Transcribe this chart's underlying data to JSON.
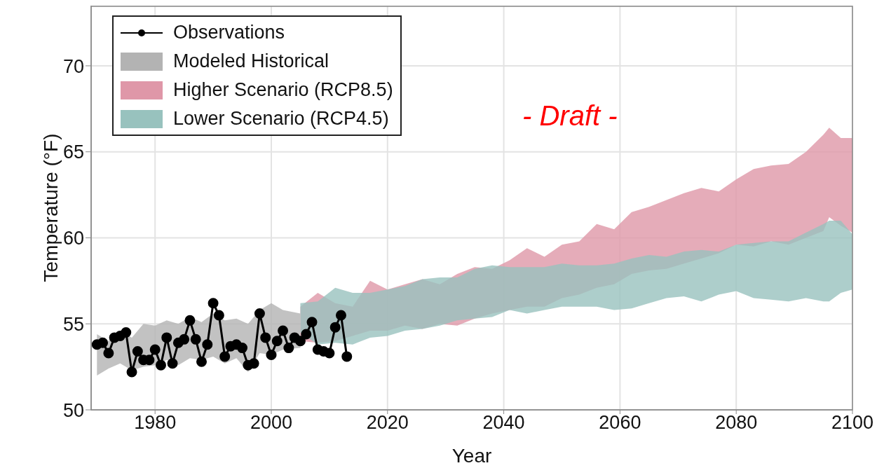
{
  "chart_data": {
    "type": "area",
    "xlabel": "Year",
    "ylabel": "Temperature (°F)",
    "xlim": [
      1969,
      2100
    ],
    "ylim": [
      50,
      73.5
    ],
    "xticks": [
      1980,
      2000,
      2020,
      2040,
      2060,
      2080,
      2100
    ],
    "yticks": [
      50,
      55,
      60,
      65,
      70
    ],
    "grid": true,
    "legend": "top left",
    "annotations": [
      "- Draft -"
    ],
    "series": [
      {
        "name": "Observations",
        "type": "line",
        "marker": "circle",
        "color": "#000000",
        "x": [
          1970,
          1971,
          1972,
          1973,
          1974,
          1975,
          1976,
          1977,
          1978,
          1979,
          1980,
          1981,
          1982,
          1983,
          1984,
          1985,
          1986,
          1987,
          1988,
          1989,
          1990,
          1991,
          1992,
          1993,
          1994,
          1995,
          1996,
          1997,
          1998,
          1999,
          2000,
          2001,
          2002,
          2003,
          2004,
          2005,
          2006,
          2007,
          2008,
          2009,
          2010,
          2011,
          2012,
          2013
        ],
        "values": [
          53.8,
          53.9,
          53.3,
          54.2,
          54.3,
          54.5,
          52.2,
          53.4,
          52.9,
          52.9,
          53.5,
          52.6,
          54.2,
          52.7,
          53.9,
          54.1,
          55.2,
          54.1,
          52.8,
          53.8,
          56.2,
          55.5,
          53.1,
          53.7,
          53.8,
          53.6,
          52.6,
          52.7,
          55.6,
          54.2,
          53.2,
          54.0,
          54.6,
          53.6,
          54.2,
          54.0,
          54.4,
          55.1,
          53.5,
          53.4,
          53.3,
          54.8,
          55.5,
          53.1
        ]
      },
      {
        "name": "Modeled Historical",
        "color": "#b3b3b3",
        "x": [
          1970,
          1972,
          1974,
          1976,
          1978,
          1980,
          1982,
          1984,
          1986,
          1988,
          1990,
          1992,
          1994,
          1996,
          1998,
          2000,
          2002,
          2005
        ],
        "values": [
          null,
          null,
          null,
          null,
          null,
          null,
          null,
          null,
          null,
          null,
          null,
          null,
          null,
          null,
          null,
          null,
          null,
          null
        ],
        "upper": [
          54.4,
          54.0,
          54.6,
          54.2,
          55.0,
          54.9,
          55.2,
          55.0,
          55.4,
          55.1,
          55.6,
          55.2,
          55.3,
          55.0,
          55.8,
          56.2,
          55.8,
          55.6
        ],
        "lower": [
          52.0,
          52.4,
          52.7,
          52.3,
          52.5,
          52.6,
          52.9,
          52.6,
          53.0,
          52.9,
          53.1,
          52.7,
          53.0,
          52.2,
          53.3,
          53.2,
          53.5,
          53.6
        ]
      },
      {
        "name": "Higher Scenario (RCP8.5)",
        "color": "#df97a8",
        "x": [
          2005,
          2008,
          2011,
          2014,
          2017,
          2020,
          2023,
          2026,
          2029,
          2032,
          2035,
          2038,
          2041,
          2044,
          2047,
          2050,
          2053,
          2056,
          2059,
          2062,
          2065,
          2068,
          2071,
          2074,
          2077,
          2080,
          2083,
          2086,
          2089,
          2092,
          2095,
          2096,
          2098,
          2100
        ],
        "values": [
          null,
          null,
          null,
          null,
          null,
          null,
          null,
          null,
          null,
          null,
          null,
          null,
          null,
          null,
          null,
          null,
          null,
          null,
          null,
          null,
          null,
          null,
          null,
          null,
          null,
          null,
          null,
          null,
          null,
          null,
          null,
          null,
          null,
          null
        ],
        "upper": [
          56.0,
          56.8,
          56.2,
          56.0,
          57.5,
          57.0,
          57.3,
          57.6,
          57.3,
          57.9,
          58.3,
          58.2,
          58.7,
          59.4,
          58.9,
          59.6,
          59.8,
          60.8,
          60.5,
          61.5,
          61.8,
          62.2,
          62.6,
          62.9,
          62.7,
          63.4,
          64.0,
          64.2,
          64.3,
          65.0,
          66.0,
          66.4,
          65.8,
          65.8
        ],
        "lower": [
          54.0,
          53.9,
          54.0,
          54.3,
          54.6,
          54.6,
          54.9,
          54.7,
          55.0,
          54.9,
          55.3,
          55.6,
          55.8,
          56.0,
          56.0,
          56.5,
          56.7,
          57.1,
          57.3,
          57.9,
          58.1,
          58.2,
          58.5,
          58.8,
          59.1,
          59.6,
          59.5,
          59.8,
          59.6,
          60.0,
          60.4,
          61.2,
          60.7,
          60.3
        ]
      },
      {
        "name": "Lower Scenario (RCP4.5)",
        "color": "#98c2be",
        "x": [
          2005,
          2008,
          2011,
          2014,
          2017,
          2020,
          2023,
          2026,
          2029,
          2032,
          2035,
          2038,
          2041,
          2044,
          2047,
          2050,
          2053,
          2056,
          2059,
          2062,
          2065,
          2068,
          2071,
          2074,
          2077,
          2080,
          2083,
          2086,
          2089,
          2092,
          2095,
          2096,
          2098,
          2100
        ],
        "values": [
          null,
          null,
          null,
          null,
          null,
          null,
          null,
          null,
          null,
          null,
          null,
          null,
          null,
          null,
          null,
          null,
          null,
          null,
          null,
          null,
          null,
          null,
          null,
          null,
          null,
          null,
          null,
          null,
          null,
          null,
          null,
          null,
          null,
          null
        ],
        "upper": [
          56.2,
          56.3,
          57.1,
          56.8,
          56.8,
          57.0,
          57.2,
          57.6,
          57.7,
          57.7,
          58.2,
          58.4,
          58.3,
          58.3,
          58.3,
          58.5,
          58.4,
          58.4,
          58.5,
          58.8,
          59.0,
          58.9,
          59.2,
          59.3,
          59.2,
          59.6,
          59.7,
          59.8,
          59.8,
          60.3,
          60.8,
          61.0,
          61.0,
          60.2
        ],
        "lower": [
          54.5,
          53.8,
          53.9,
          53.8,
          54.2,
          54.3,
          54.6,
          54.7,
          54.9,
          55.2,
          55.3,
          55.4,
          55.8,
          55.6,
          55.8,
          56.0,
          56.0,
          56.0,
          55.8,
          55.9,
          56.2,
          56.5,
          56.6,
          56.3,
          56.7,
          56.9,
          56.5,
          56.4,
          56.3,
          56.5,
          56.3,
          56.3,
          56.8,
          57.0
        ]
      }
    ]
  }
}
